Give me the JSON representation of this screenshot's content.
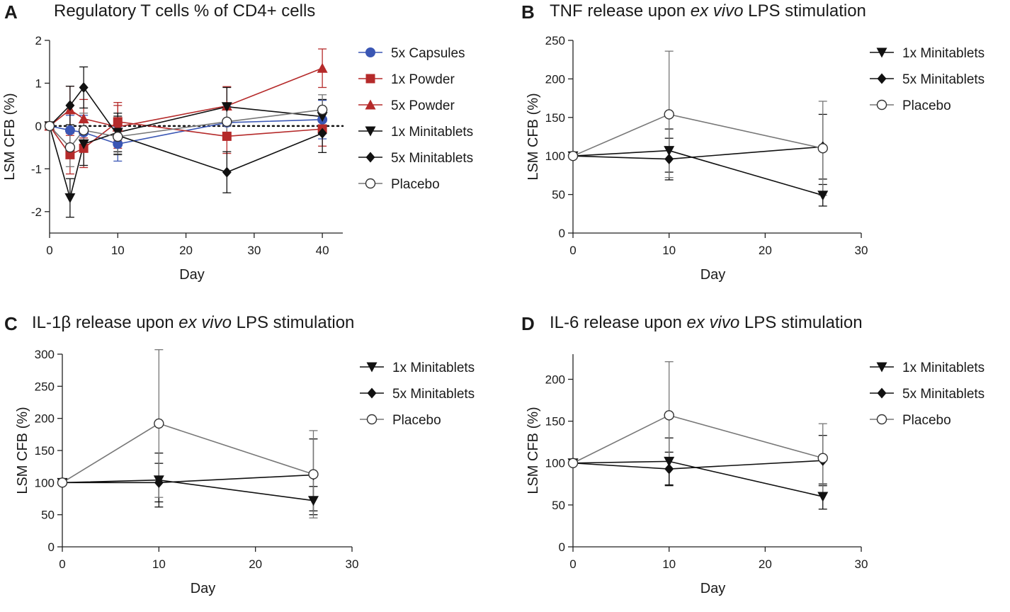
{
  "chart_data": [
    {
      "type": "line",
      "panel": "A",
      "title": "Regulatory T cells % of CD4+ cells",
      "title_parts": {
        "before": "Regulatory T cells % of CD4+ cells",
        "italic": "",
        "after": ""
      },
      "xlabel": "Day",
      "ylabel": "LSM CFB (%)",
      "xlim": [
        0,
        43
      ],
      "ylim": [
        -2.5,
        2
      ],
      "xticks": [
        0,
        10,
        20,
        30,
        40
      ],
      "yticks": [
        -2,
        -1,
        0,
        1,
        2
      ],
      "reference_line_y": 0,
      "legend_position": "right",
      "series": [
        {
          "name": "5x Capsules",
          "marker": "circle-filled",
          "color": "#3a56b4",
          "x": [
            0,
            3,
            5,
            10,
            26,
            40
          ],
          "y": [
            0,
            -0.1,
            -0.15,
            -0.42,
            0.08,
            0.15
          ],
          "err": [
            0,
            0.35,
            0.4,
            0.4,
            0.38,
            0.45
          ]
        },
        {
          "name": "1x Powder",
          "marker": "square-filled",
          "color": "#b52a2a",
          "x": [
            0,
            3,
            5,
            10,
            26,
            40
          ],
          "y": [
            0,
            -0.67,
            -0.52,
            0.1,
            -0.24,
            -0.07
          ],
          "err": [
            0,
            0.45,
            0.45,
            0.45,
            0.4,
            0.4
          ]
        },
        {
          "name": "5x Powder",
          "marker": "triangle-up-filled",
          "color": "#b52a2a",
          "x": [
            0,
            3,
            5,
            10,
            26,
            40
          ],
          "y": [
            0,
            0.38,
            0.17,
            -0.02,
            0.47,
            1.35
          ],
          "err": [
            0,
            0.55,
            0.45,
            0.5,
            0.45,
            0.45
          ]
        },
        {
          "name": "1x Minitablets",
          "marker": "triangle-down-filled",
          "color": "#111111",
          "x": [
            0,
            3,
            5,
            10,
            26,
            40
          ],
          "y": [
            0,
            -1.68,
            -0.42,
            -0.15,
            0.45,
            0.22
          ],
          "err": [
            0,
            0.45,
            0.5,
            0.45,
            0.45,
            0.4
          ]
        },
        {
          "name": "5x Minitablets",
          "marker": "diamond-filled",
          "color": "#111111",
          "x": [
            0,
            3,
            5,
            10,
            26,
            40
          ],
          "y": [
            0,
            0.48,
            0.9,
            -0.22,
            -1.08,
            -0.17
          ],
          "err": [
            0,
            0.45,
            0.48,
            0.45,
            0.48,
            0.45
          ]
        },
        {
          "name": "Placebo",
          "marker": "circle-open",
          "color": "#777777",
          "x": [
            0,
            3,
            5,
            10,
            26,
            40
          ],
          "y": [
            0,
            -0.5,
            -0.1,
            -0.25,
            0.1,
            0.38
          ],
          "err": [
            0,
            0.45,
            0.4,
            0.4,
            0.4,
            0.35
          ]
        }
      ]
    },
    {
      "type": "line",
      "panel": "B",
      "title": "TNF release upon ex vivo LPS stimulation",
      "title_parts": {
        "before": "TNF release upon ",
        "italic": "ex vivo",
        "after": " LPS stimulation"
      },
      "xlabel": "Day",
      "ylabel": "LSM CFB (%)",
      "xlim": [
        0,
        30
      ],
      "ylim": [
        0,
        250
      ],
      "xticks": [
        0,
        10,
        20,
        30
      ],
      "yticks": [
        0,
        50,
        100,
        150,
        200,
        250
      ],
      "legend_position": "top-right",
      "series": [
        {
          "name": "1x Minitablets",
          "marker": "triangle-down-filled",
          "color": "#111111",
          "x": [
            0,
            10,
            26
          ],
          "y": [
            100,
            107,
            49
          ],
          "err": [
            0,
            28,
            14
          ]
        },
        {
          "name": "5x Minitablets",
          "marker": "diamond-filled",
          "color": "#111111",
          "x": [
            0,
            10,
            26
          ],
          "y": [
            100,
            96,
            112
          ],
          "err": [
            0,
            27,
            42
          ]
        },
        {
          "name": "Placebo",
          "marker": "circle-open",
          "color": "#777777",
          "x": [
            0,
            10,
            26
          ],
          "y": [
            100,
            154,
            110
          ],
          "err": [
            0,
            82,
            61
          ]
        }
      ]
    },
    {
      "type": "line",
      "panel": "C",
      "title": "IL-1β release upon ex vivo LPS stimulation",
      "title_parts": {
        "before": "IL-1β release upon ",
        "italic": "ex vivo",
        "after": " LPS stimulation"
      },
      "xlabel": "Day",
      "ylabel": "LSM CFB (%)",
      "xlim": [
        0,
        30
      ],
      "ylim": [
        0,
        300
      ],
      "xticks": [
        0,
        10,
        20,
        30
      ],
      "yticks": [
        0,
        50,
        100,
        150,
        200,
        250,
        300
      ],
      "legend_position": "top-right",
      "series": [
        {
          "name": "1x Minitablets",
          "marker": "triangle-down-filled",
          "color": "#111111",
          "x": [
            0,
            10,
            26
          ],
          "y": [
            100,
            104,
            72
          ],
          "err": [
            0,
            42,
            22
          ]
        },
        {
          "name": "5x Minitablets",
          "marker": "diamond-filled",
          "color": "#111111",
          "x": [
            0,
            10,
            26
          ],
          "y": [
            100,
            100,
            112
          ],
          "err": [
            0,
            30,
            56
          ]
        },
        {
          "name": "Placebo",
          "marker": "circle-open",
          "color": "#777777",
          "x": [
            0,
            10,
            26
          ],
          "y": [
            100,
            192,
            113
          ],
          "err": [
            0,
            115,
            68
          ]
        }
      ]
    },
    {
      "type": "line",
      "panel": "D",
      "title": "IL-6 release upon ex vivo LPS stimulation",
      "title_parts": {
        "before": "IL-6 release upon ",
        "italic": "ex vivo",
        "after": " LPS stimulation"
      },
      "xlabel": "Day",
      "ylabel": "LSM CFB (%)",
      "xlim": [
        0,
        30
      ],
      "ylim": [
        0,
        230
      ],
      "xticks": [
        0,
        10,
        20,
        30
      ],
      "yticks": [
        0,
        50,
        100,
        150,
        200
      ],
      "legend_position": "top-right",
      "series": [
        {
          "name": "1x Minitablets",
          "marker": "triangle-down-filled",
          "color": "#111111",
          "x": [
            0,
            10,
            26
          ],
          "y": [
            100,
            102,
            60
          ],
          "err": [
            0,
            28,
            15
          ]
        },
        {
          "name": "5x Minitablets",
          "marker": "diamond-filled",
          "color": "#111111",
          "x": [
            0,
            10,
            26
          ],
          "y": [
            100,
            93,
            103
          ],
          "err": [
            0,
            20,
            30
          ]
        },
        {
          "name": "Placebo",
          "marker": "circle-open",
          "color": "#777777",
          "x": [
            0,
            10,
            26
          ],
          "y": [
            100,
            157,
            106
          ],
          "err": [
            0,
            64,
            41
          ]
        }
      ]
    }
  ]
}
